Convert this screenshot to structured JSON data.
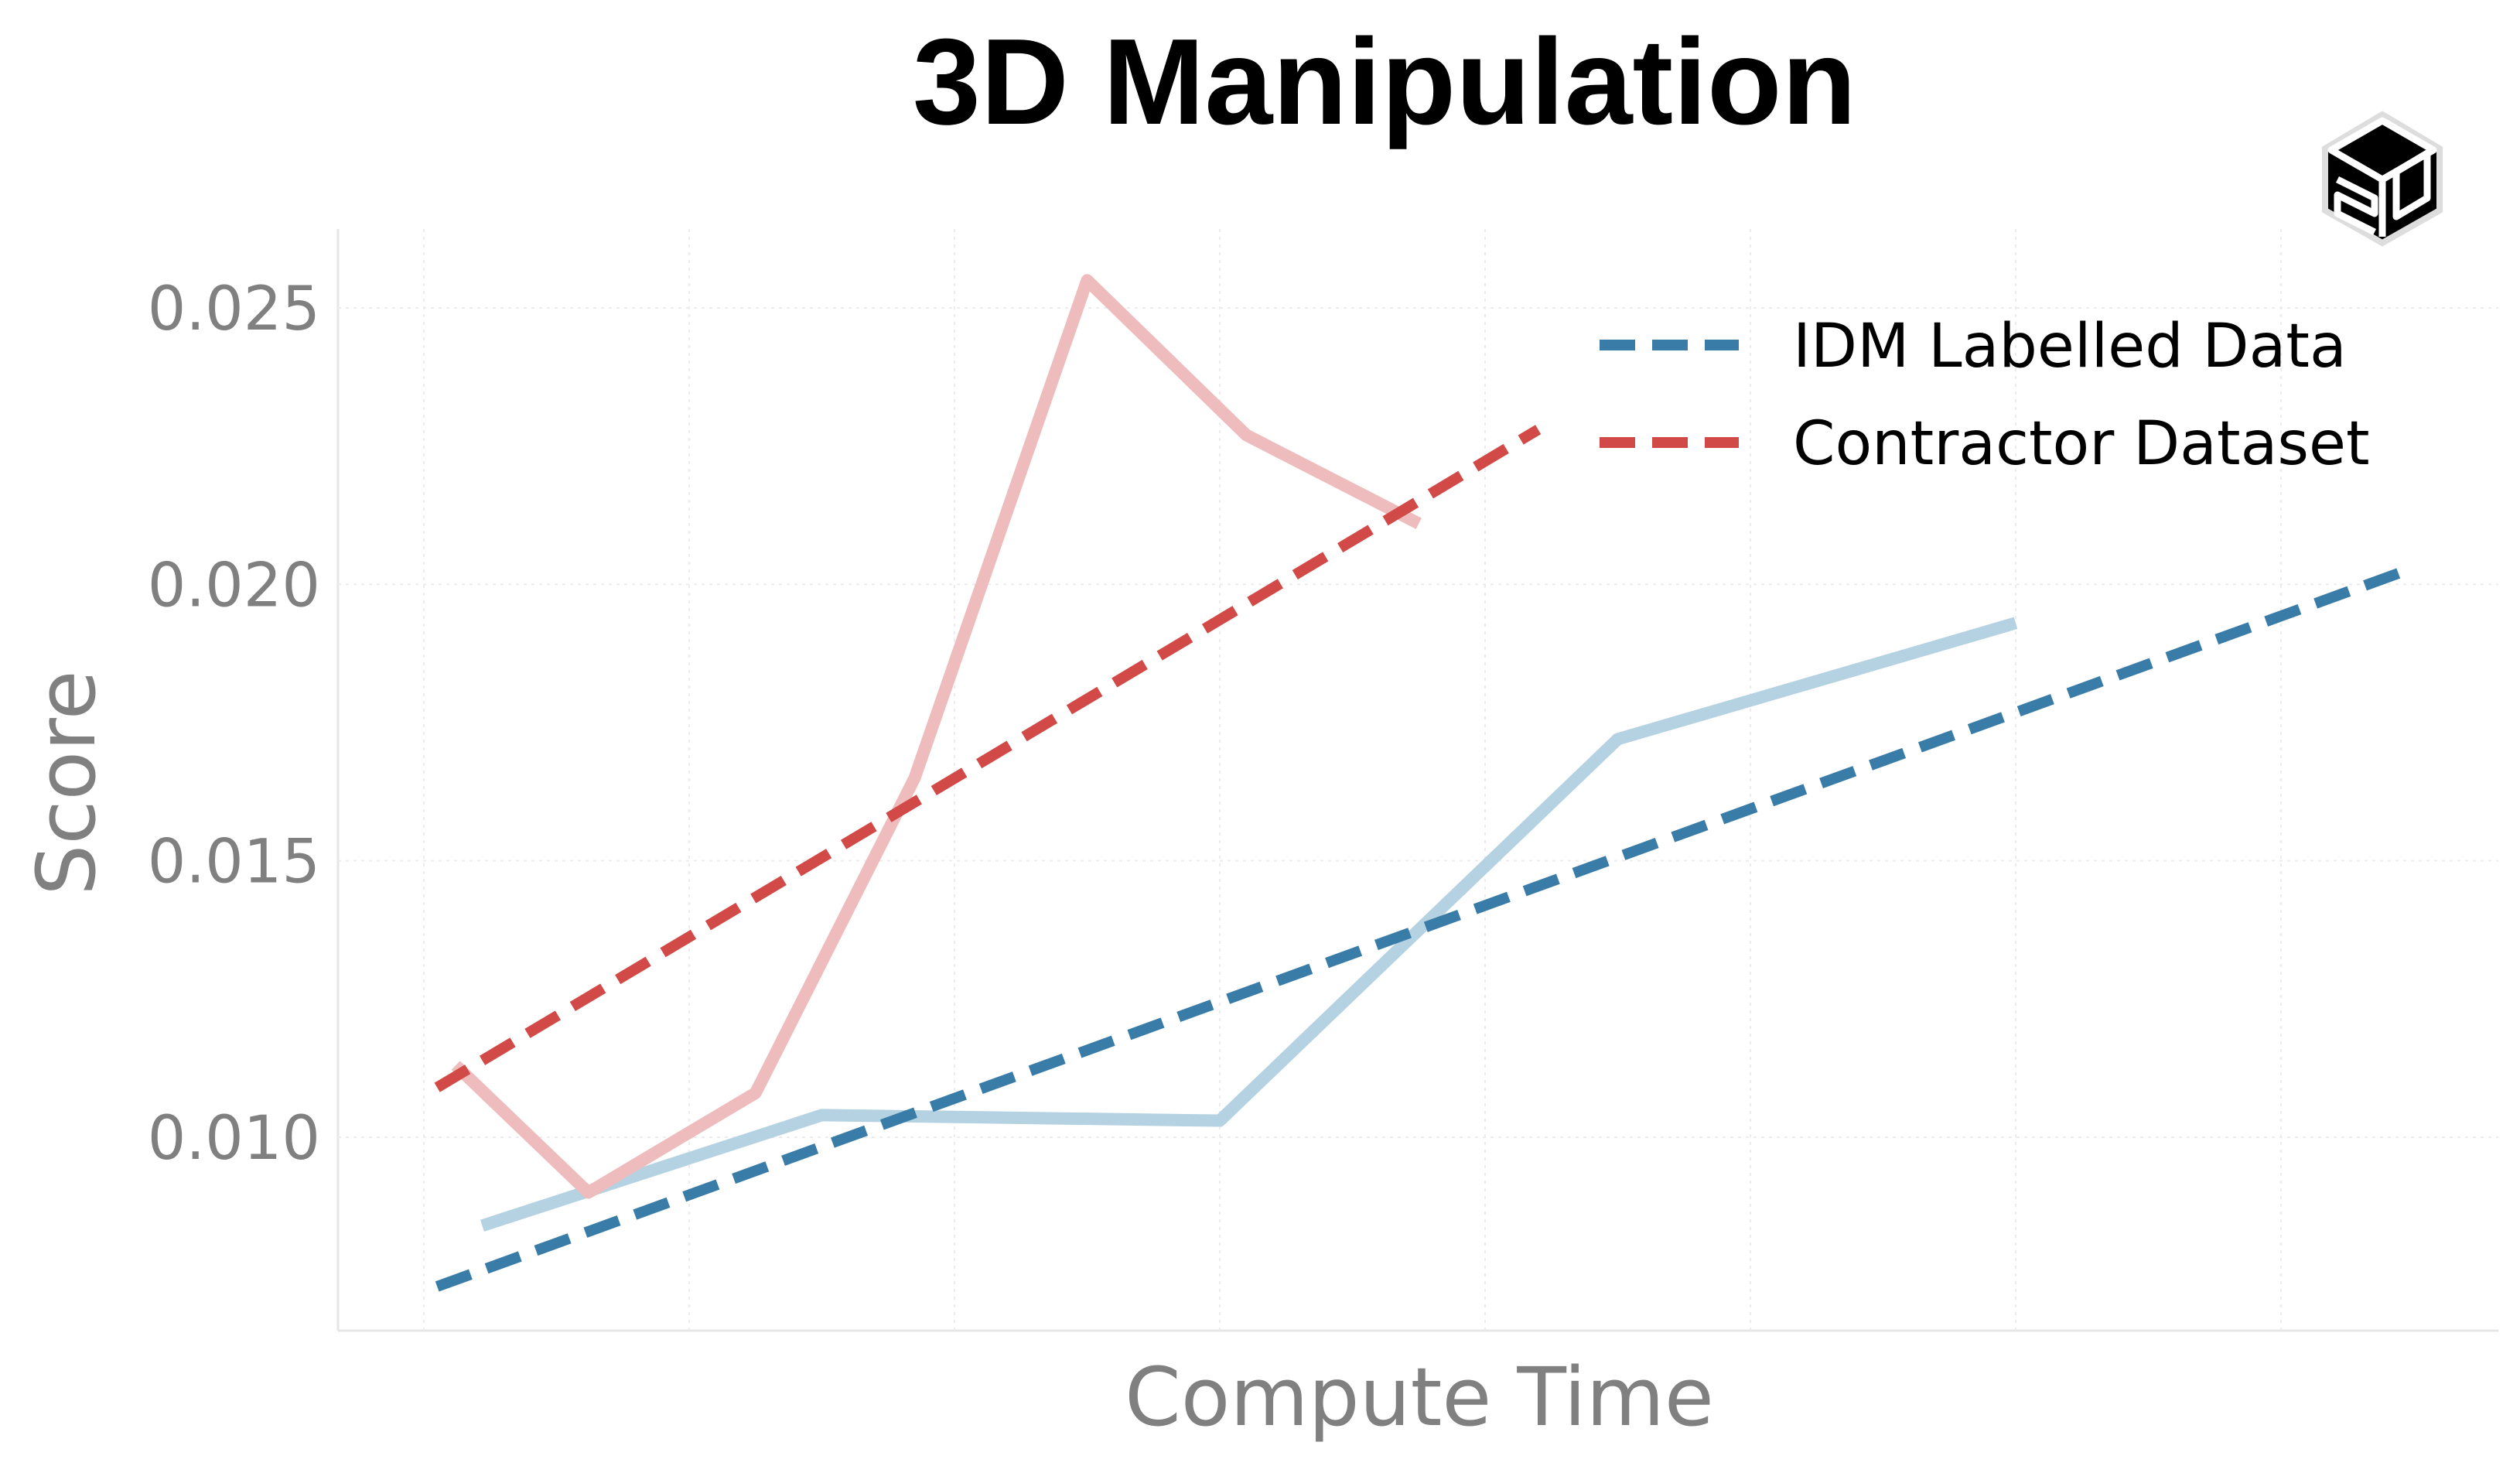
{
  "chart_data": {
    "type": "line",
    "title": "3D Manipulation",
    "xlabel": "Compute Time",
    "ylabel": "Score",
    "xlim": [
      0,
      8.15
    ],
    "ylim": [
      0.0065,
      0.0264
    ],
    "yticks": [
      0.01,
      0.015,
      0.02,
      0.025
    ],
    "ytick_labels": [
      "0.010",
      "0.015",
      "0.020",
      "0.025"
    ],
    "xticks": [
      0,
      1,
      2,
      3,
      4,
      5,
      6,
      7,
      8
    ],
    "xtick_labels": [],
    "grid": true,
    "legend_position": "top-right",
    "series": [
      {
        "name": "",
        "style": "solid",
        "color": "#b5d2e2",
        "x": [
          0.22,
          1.5,
          3.0,
          4.5,
          6.0
        ],
        "y": [
          0.0084,
          0.0104,
          0.0103,
          0.0172,
          0.0193
        ]
      },
      {
        "name": "",
        "style": "solid",
        "color": "#eebcbc",
        "x": [
          0.12,
          0.62,
          1.25,
          1.85,
          2.5,
          3.1,
          3.75
        ],
        "y": [
          0.0113,
          0.009,
          0.0108,
          0.0165,
          0.0255,
          0.0227,
          0.0211
        ]
      },
      {
        "name": "IDM Labelled Data",
        "style": "dashed",
        "color": "#3a7ca8",
        "x": [
          0.05,
          7.5
        ],
        "y": [
          0.0073,
          0.0203
        ]
      },
      {
        "name": "Contractor Dataset",
        "style": "dashed",
        "color": "#d24a47",
        "x": [
          0.05,
          4.2
        ],
        "y": [
          0.0109,
          0.0228
        ]
      }
    ]
  }
}
